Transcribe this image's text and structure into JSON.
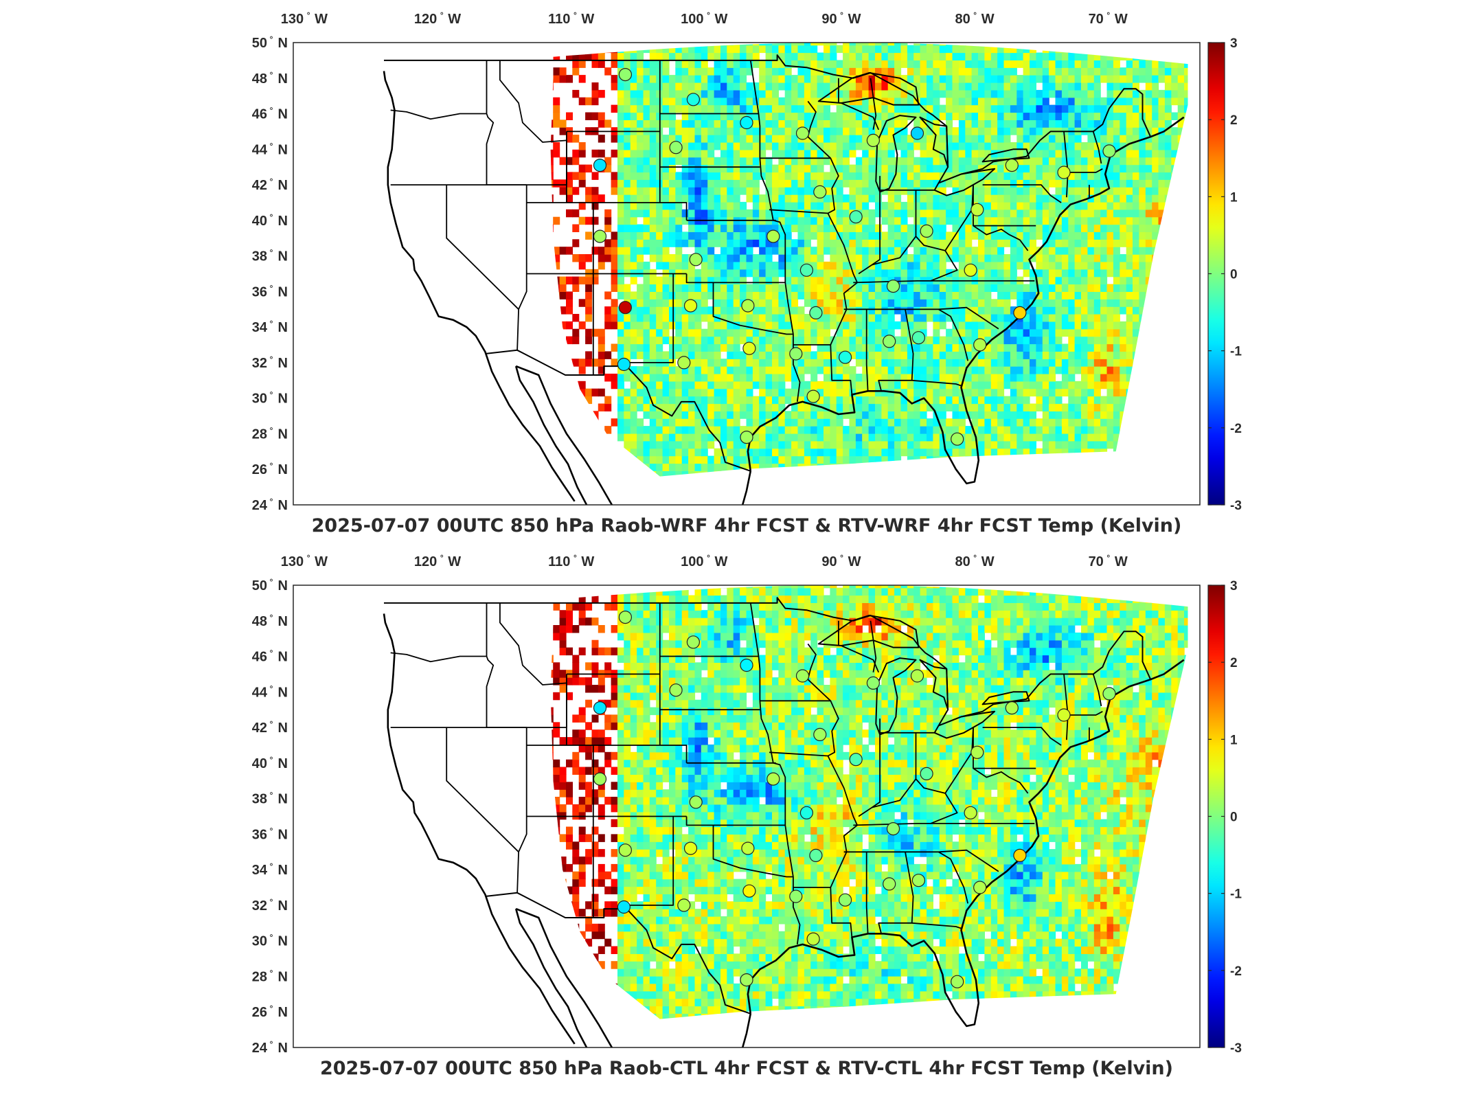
{
  "panels": [
    {
      "title": "2025-07-07 00UTC 850 hPa Raob-WRF 4hr FCST & RTV-WRF 4hr FCST Temp (Kelvin)",
      "stations": [
        {
          "lon": -106.6,
          "lat": 48.2,
          "v": 0.1
        },
        {
          "lon": -101.5,
          "lat": 46.8,
          "v": -0.6
        },
        {
          "lon": -97.5,
          "lat": 45.5,
          "v": -0.8
        },
        {
          "lon": -93.3,
          "lat": 44.9,
          "v": 0.2
        },
        {
          "lon": -88.0,
          "lat": 44.5,
          "v": 0.3
        },
        {
          "lon": -84.7,
          "lat": 44.9,
          "v": -1.0
        },
        {
          "lon": -102.8,
          "lat": 44.1,
          "v": 0.1
        },
        {
          "lon": -108.5,
          "lat": 43.1,
          "v": -0.9
        },
        {
          "lon": -92.0,
          "lat": 41.6,
          "v": 0.2
        },
        {
          "lon": -89.3,
          "lat": 40.2,
          "v": -0.3
        },
        {
          "lon": -84.0,
          "lat": 39.4,
          "v": 0.2
        },
        {
          "lon": -80.2,
          "lat": 40.6,
          "v": 0.4
        },
        {
          "lon": -108.5,
          "lat": 39.1,
          "v": 0.2
        },
        {
          "lon": -101.3,
          "lat": 37.8,
          "v": 0.2
        },
        {
          "lon": -95.5,
          "lat": 39.1,
          "v": 0.3
        },
        {
          "lon": -93.0,
          "lat": 37.2,
          "v": -0.3
        },
        {
          "lon": -86.5,
          "lat": 36.3,
          "v": 0.1
        },
        {
          "lon": -80.7,
          "lat": 37.2,
          "v": 0.6
        },
        {
          "lon": -106.6,
          "lat": 35.1,
          "v": 2.6
        },
        {
          "lon": -101.7,
          "lat": 35.2,
          "v": 0.6
        },
        {
          "lon": -97.4,
          "lat": 35.2,
          "v": 0.3
        },
        {
          "lon": -92.3,
          "lat": 34.8,
          "v": -0.2
        },
        {
          "lon": -86.8,
          "lat": 33.2,
          "v": 0.1
        },
        {
          "lon": -84.6,
          "lat": 33.4,
          "v": -0.3
        },
        {
          "lon": -77.0,
          "lat": 34.8,
          "v": 1.0
        },
        {
          "lon": -80.0,
          "lat": 33.0,
          "v": 0.3
        },
        {
          "lon": -106.7,
          "lat": 31.9,
          "v": -0.9
        },
        {
          "lon": -102.2,
          "lat": 32.0,
          "v": 0.3
        },
        {
          "lon": -97.3,
          "lat": 32.8,
          "v": 0.6
        },
        {
          "lon": -93.8,
          "lat": 32.5,
          "v": 0.1
        },
        {
          "lon": -90.1,
          "lat": 32.3,
          "v": -0.6
        },
        {
          "lon": -92.5,
          "lat": 30.1,
          "v": 0.4
        },
        {
          "lon": -97.5,
          "lat": 27.8,
          "v": 0.2
        },
        {
          "lon": -81.7,
          "lat": 27.7,
          "v": 0.2
        },
        {
          "lon": -77.6,
          "lat": 43.1,
          "v": 0.3
        },
        {
          "lon": -73.7,
          "lat": 42.7,
          "v": 0.5
        },
        {
          "lon": -70.3,
          "lat": 43.9,
          "v": 0.1
        }
      ]
    },
    {
      "title": "2025-07-07 00UTC 850 hPa Raob-CTL 4hr FCST & RTV-CTL 4hr FCST Temp (Kelvin)",
      "stations": [
        {
          "lon": -106.6,
          "lat": 48.2,
          "v": 0.2
        },
        {
          "lon": -101.5,
          "lat": 46.8,
          "v": 0.2
        },
        {
          "lon": -97.5,
          "lat": 45.5,
          "v": -0.8
        },
        {
          "lon": -93.3,
          "lat": 44.9,
          "v": 0.2
        },
        {
          "lon": -88.0,
          "lat": 44.5,
          "v": 0.1
        },
        {
          "lon": -84.7,
          "lat": 44.9,
          "v": 0.3
        },
        {
          "lon": -102.8,
          "lat": 44.1,
          "v": 0.2
        },
        {
          "lon": -108.5,
          "lat": 43.1,
          "v": -0.9
        },
        {
          "lon": -92.0,
          "lat": 41.6,
          "v": 0.2
        },
        {
          "lon": -89.3,
          "lat": 40.2,
          "v": -0.3
        },
        {
          "lon": -84.0,
          "lat": 39.4,
          "v": -0.2
        },
        {
          "lon": -80.2,
          "lat": 40.6,
          "v": 0.3
        },
        {
          "lon": -108.5,
          "lat": 39.1,
          "v": 0.2
        },
        {
          "lon": -101.3,
          "lat": 37.8,
          "v": 0.2
        },
        {
          "lon": -95.5,
          "lat": 39.1,
          "v": 0.3
        },
        {
          "lon": -93.0,
          "lat": 37.2,
          "v": -0.6
        },
        {
          "lon": -86.5,
          "lat": 36.3,
          "v": 0.1
        },
        {
          "lon": -80.7,
          "lat": 37.2,
          "v": 0.4
        },
        {
          "lon": -106.6,
          "lat": 35.1,
          "v": 0.3
        },
        {
          "lon": -101.7,
          "lat": 35.2,
          "v": 0.6
        },
        {
          "lon": -97.4,
          "lat": 35.2,
          "v": 0.4
        },
        {
          "lon": -92.3,
          "lat": 34.8,
          "v": -0.2
        },
        {
          "lon": -86.8,
          "lat": 33.2,
          "v": 0.2
        },
        {
          "lon": -84.6,
          "lat": 33.4,
          "v": 0.2
        },
        {
          "lon": -77.0,
          "lat": 34.8,
          "v": 1.0
        },
        {
          "lon": -80.0,
          "lat": 33.0,
          "v": 0.3
        },
        {
          "lon": -106.7,
          "lat": 31.9,
          "v": -0.9
        },
        {
          "lon": -102.2,
          "lat": 32.0,
          "v": 0.3
        },
        {
          "lon": -97.3,
          "lat": 32.8,
          "v": 0.8
        },
        {
          "lon": -93.8,
          "lat": 32.5,
          "v": 0.1
        },
        {
          "lon": -90.1,
          "lat": 32.3,
          "v": 0.1
        },
        {
          "lon": -92.5,
          "lat": 30.1,
          "v": 0.4
        },
        {
          "lon": -97.5,
          "lat": 27.8,
          "v": 0.2
        },
        {
          "lon": -81.7,
          "lat": 27.7,
          "v": 0.2
        },
        {
          "lon": -77.6,
          "lat": 43.1,
          "v": 0.3
        },
        {
          "lon": -73.7,
          "lat": 42.7,
          "v": 0.5
        },
        {
          "lon": -70.3,
          "lat": 43.9,
          "v": 0.1
        }
      ]
    }
  ],
  "lon_labels": [
    {
      "lon": -130,
      "text": "130",
      "hemi": "W"
    },
    {
      "lon": -120,
      "text": "120",
      "hemi": "W"
    },
    {
      "lon": -110,
      "text": "110",
      "hemi": "W"
    },
    {
      "lon": -100,
      "text": "100",
      "hemi": "W"
    },
    {
      "lon": -90,
      "text": "90",
      "hemi": "W"
    },
    {
      "lon": -80,
      "text": "80",
      "hemi": "W"
    },
    {
      "lon": -70,
      "text": "70",
      "hemi": "W"
    }
  ],
  "lat_labels": [
    {
      "lat": 50,
      "text": "50",
      "hemi": "N"
    },
    {
      "lat": 48,
      "text": "48",
      "hemi": "N"
    },
    {
      "lat": 46,
      "text": "46",
      "hemi": "N"
    },
    {
      "lat": 44,
      "text": "44",
      "hemi": "N"
    },
    {
      "lat": 42,
      "text": "42",
      "hemi": "N"
    },
    {
      "lat": 40,
      "text": "40",
      "hemi": "N"
    },
    {
      "lat": 38,
      "text": "38",
      "hemi": "N"
    },
    {
      "lat": 36,
      "text": "36",
      "hemi": "N"
    },
    {
      "lat": 34,
      "text": "34",
      "hemi": "N"
    },
    {
      "lat": 32,
      "text": "32",
      "hemi": "N"
    },
    {
      "lat": 30,
      "text": "30",
      "hemi": "N"
    },
    {
      "lat": 28,
      "text": "28",
      "hemi": "N"
    },
    {
      "lat": 26,
      "text": "26",
      "hemi": "N"
    },
    {
      "lat": 24,
      "text": "24",
      "hemi": "N"
    }
  ],
  "colorbar": {
    "ticks": [
      "3",
      "2",
      "1",
      "0",
      "-1",
      "-2",
      "-3"
    ],
    "range": [
      -3,
      3
    ],
    "colormap": "jet"
  }
}
